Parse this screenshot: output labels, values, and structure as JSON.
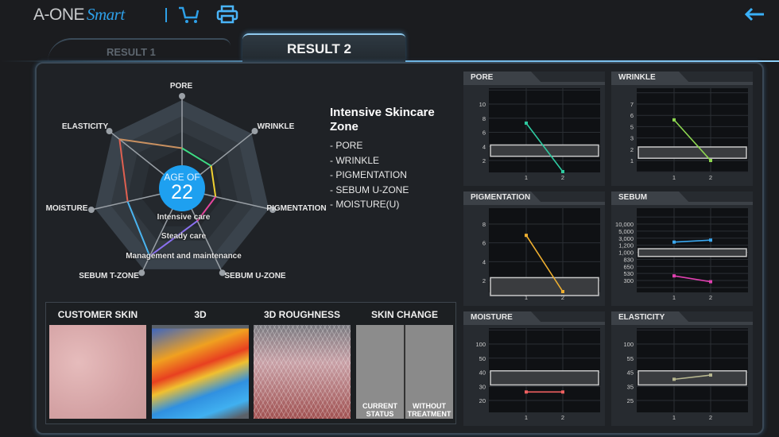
{
  "header": {
    "logo_main": "A-ONE",
    "logo_script": "Smart",
    "cart_icon": "cart-icon",
    "print_icon": "printer-icon",
    "back_icon": "back-arrow-icon",
    "accent": "#2ea0e8"
  },
  "tabs": [
    {
      "label": "RESULT 1",
      "active": false
    },
    {
      "label": "RESULT 2",
      "active": true
    }
  ],
  "radar": {
    "age_label": "AGE OF",
    "age_value": "22",
    "age_color": "#1ea0f0",
    "axes": [
      {
        "label": "PORE",
        "value": 0.44
      },
      {
        "label": "WRINKLE",
        "value": 0.4
      },
      {
        "label": "PIGMENTATION",
        "value": 0.37
      },
      {
        "label": "SEBUM U-ZONE",
        "value": 0.38
      },
      {
        "label": "SEBUM T-ZONE",
        "value": 0.8
      },
      {
        "label": "MOISTURE",
        "value": 0.6
      },
      {
        "label": "ELASTICITY",
        "value": 0.86
      }
    ],
    "segment_colors": [
      "#3ddc84",
      "#f0d030",
      "#e8459e",
      "#8a70f0",
      "#4ab4f0",
      "#e06050",
      "#c89060"
    ],
    "levels": [
      "Intensive care",
      "Steady care",
      "Management and maintenance"
    ]
  },
  "zone": {
    "title": "Intensive Skincare Zone",
    "items": [
      "- PORE",
      "- WRINKLE",
      "- PIGMENTATION",
      "- SEBUM U-ZONE",
      "- MOISTURE(U)"
    ]
  },
  "images": [
    {
      "label": "CUSTOMER SKIN"
    },
    {
      "label": "3D"
    },
    {
      "label": "3D ROUGHNESS"
    },
    {
      "label": "SKIN CHANGE",
      "captions": [
        "CURRENT STATUS",
        "WITHOUT TREATMENT"
      ]
    }
  ],
  "charts": [
    {
      "title": "PORE",
      "x": [
        "1",
        "2"
      ],
      "ticks": [
        2,
        4,
        6,
        8,
        10
      ],
      "band": [
        2.6,
        4.2
      ],
      "series": [
        {
          "color": "#2ec9a0",
          "values": [
            7.3,
            0
          ]
        }
      ]
    },
    {
      "title": "WRINKLE",
      "x": [
        "1",
        "2"
      ],
      "ticks": [
        1,
        2,
        3,
        5,
        6,
        7
      ],
      "band": [
        1.2,
        2.2
      ],
      "series": [
        {
          "color": "#8ed850",
          "values": [
            5.6,
            1
          ]
        }
      ]
    },
    {
      "title": "PIGMENTATION",
      "x": [
        "1",
        "2"
      ],
      "ticks": [
        2,
        4,
        6,
        8
      ],
      "band": [
        0.4,
        2.3
      ],
      "series": [
        {
          "color": "#f0b030",
          "values": [
            6.8,
            0.3
          ]
        }
      ]
    },
    {
      "title": "SEBUM",
      "x": [
        "1",
        "2"
      ],
      "ticks": [
        "300",
        "530",
        "650",
        "830",
        "1,000",
        "1,200",
        "3,000",
        "5,000",
        "10,000"
      ],
      "tick_values": [
        300,
        530,
        650,
        830,
        1000,
        1200,
        3000,
        5000,
        10000
      ],
      "band": [
        900,
        1100
      ],
      "series": [
        {
          "color": "#3aa8f0",
          "values": [
            2000,
            2500
          ]
        },
        {
          "color": "#e040b0",
          "values": [
            450,
            260
          ]
        }
      ]
    },
    {
      "title": "MOISTURE",
      "x": [
        "1",
        "2"
      ],
      "ticks": [
        20,
        30,
        40,
        50,
        100
      ],
      "band": [
        31,
        41
      ],
      "series": [
        {
          "color": "#f06060",
          "values": [
            26,
            26
          ]
        }
      ]
    },
    {
      "title": "ELASTICITY",
      "x": [
        "1",
        "2"
      ],
      "ticks": [
        25,
        35,
        45,
        55,
        100
      ],
      "band": [
        36,
        46
      ],
      "series": [
        {
          "color": "#b8b890",
          "values": [
            40,
            43
          ]
        }
      ]
    }
  ]
}
